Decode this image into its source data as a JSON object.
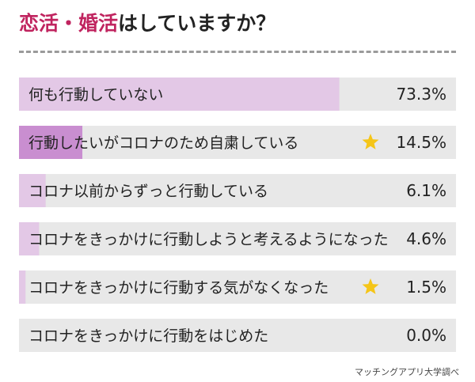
{
  "title": {
    "highlight": "恋活・婚活",
    "rest": "はしていますか？"
  },
  "source": "マッチングアプリ大学調べ",
  "colors": {
    "title_highlight": "#c0245f",
    "bar_track": "#e8e8e8",
    "bar_fill": "#e3c8e6",
    "bar_fill_highlight": "#c98ed0",
    "star": "#f5c518"
  },
  "chart_data": {
    "type": "bar",
    "orientation": "horizontal",
    "xlim": [
      0,
      100
    ],
    "categories": [
      "何も行動していない",
      "行動したいがコロナのため自粛している",
      "コロナ以前からずっと行動している",
      "コロナをきっかけに行動しようと考えるようになった",
      "コロナをきっかけに行動する気がなくなった",
      "コロナをきっかけに行動をはじめた"
    ],
    "values": [
      73.3,
      14.5,
      6.1,
      4.6,
      1.5,
      0.0
    ],
    "value_labels": [
      "73.3%",
      "14.5%",
      "6.1%",
      "4.6%",
      "1.5%",
      "0.0%"
    ],
    "starred": [
      false,
      true,
      false,
      false,
      true,
      false
    ],
    "highlighted": [
      false,
      true,
      false,
      false,
      false,
      false
    ],
    "grid": false,
    "legend": "none"
  }
}
